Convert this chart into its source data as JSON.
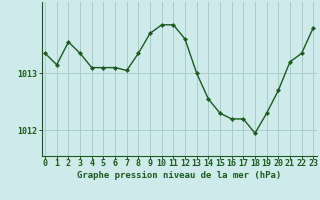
{
  "x": [
    0,
    1,
    2,
    3,
    4,
    5,
    6,
    7,
    8,
    9,
    10,
    11,
    12,
    13,
    14,
    15,
    16,
    17,
    18,
    19,
    20,
    21,
    22,
    23
  ],
  "y": [
    1013.35,
    1013.15,
    1013.55,
    1013.35,
    1013.1,
    1013.1,
    1013.1,
    1013.05,
    1013.35,
    1013.7,
    1013.85,
    1013.85,
    1013.6,
    1013.0,
    1012.55,
    1012.3,
    1012.2,
    1012.2,
    1011.95,
    1012.3,
    1012.7,
    1013.2,
    1013.35,
    1013.8
  ],
  "line_color": "#1a5c1a",
  "marker": "D",
  "marker_size": 2.2,
  "bg_color": "#ceeaea",
  "grid_color": "#a8cccc",
  "xlabel": "Graphe pression niveau de la mer (hPa)",
  "xlabel_fontsize": 6.5,
  "ylabel_ticks": [
    1012,
    1013
  ],
  "xlim": [
    -0.3,
    23.3
  ],
  "ylim": [
    1011.55,
    1014.25
  ],
  "tick_fontsize": 6,
  "line_width": 1.0
}
